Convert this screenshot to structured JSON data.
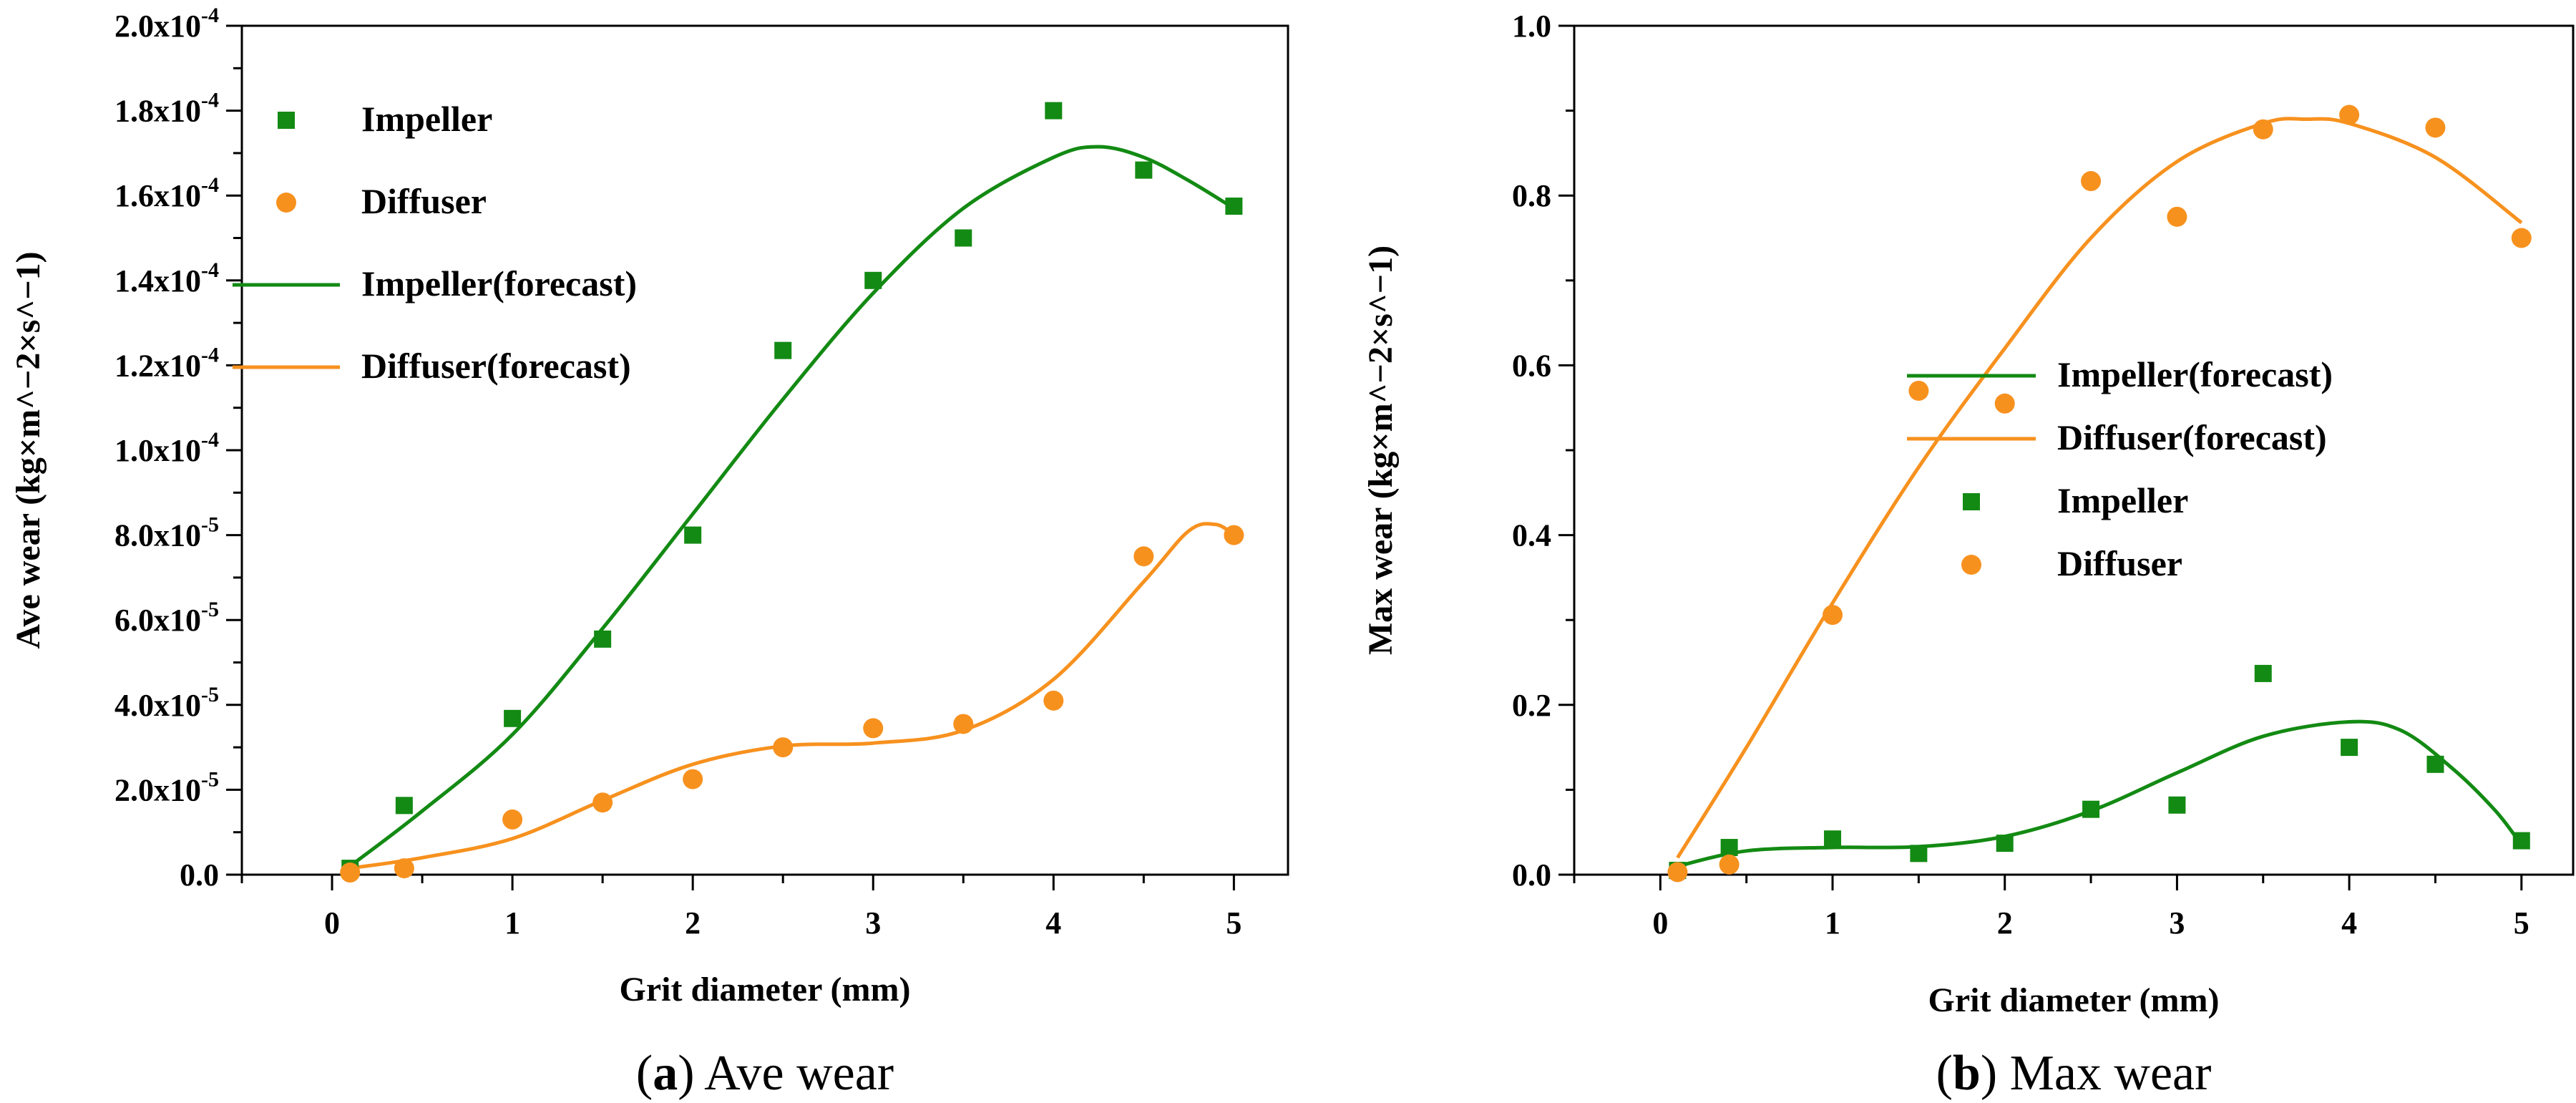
{
  "colors": {
    "impeller": "#138a13",
    "diffuser": "#f7911e"
  },
  "chart_data": [
    {
      "type": "scatter",
      "panel": "a",
      "caption_letter": "a",
      "caption_text": " Ave wear",
      "xlabel": "Grit diameter (mm)",
      "ylabel": "Ave wear (kg×m^−2×s^−1)",
      "xlim": [
        -0.5,
        5.3
      ],
      "ylim": [
        0,
        0.0002
      ],
      "x_ticks": [
        0,
        1,
        2,
        3,
        4,
        5
      ],
      "x_tick_labels": [
        "0",
        "1",
        "2",
        "3",
        "4",
        "5"
      ],
      "y_ticks": [
        0,
        2e-05,
        4e-05,
        6e-05,
        8e-05,
        0.0001,
        0.00012,
        0.00014,
        0.00016,
        0.00018,
        0.0002
      ],
      "y_tick_mantissa": [
        "0.0",
        "2.0x10",
        "4.0x10",
        "6.0x10",
        "8.0x10",
        "1.0x10",
        "1.2x10",
        "1.4x10",
        "1.6x10",
        "1.8x10",
        "2.0x10"
      ],
      "y_tick_exponent": [
        "",
        "-5",
        "-5",
        "-5",
        "-5",
        "-4",
        "-4",
        "-4",
        "-4",
        "-4",
        "-4"
      ],
      "legend": {
        "position": "top-left",
        "entries": [
          {
            "label": "Impeller",
            "kind": "square",
            "color_key": "impeller"
          },
          {
            "label": "Diffuser",
            "kind": "circle",
            "color_key": "diffuser"
          },
          {
            "label": "Impeller(forecast)",
            "kind": "line",
            "color_key": "impeller"
          },
          {
            "label": "Diffuser(forecast)",
            "kind": "line",
            "color_key": "diffuser"
          }
        ]
      },
      "series": [
        {
          "name": "Impeller",
          "kind": "points",
          "marker": "square",
          "color_key": "impeller",
          "x": [
            0.1,
            0.4,
            1,
            1.5,
            2,
            2.5,
            3,
            3.5,
            4,
            4.5,
            5
          ],
          "y": [
            1.5e-06,
            1.63e-05,
            3.68e-05,
            5.55e-05,
            8e-05,
            0.0001235,
            0.00014,
            0.00015,
            0.00018,
            0.000166,
            0.0001575
          ]
        },
        {
          "name": "Diffuser",
          "kind": "points",
          "marker": "circle",
          "color_key": "diffuser",
          "x": [
            0.1,
            0.4,
            1,
            1.5,
            2,
            2.5,
            3,
            3.5,
            4,
            4.5,
            5
          ],
          "y": [
            5e-07,
            1.5e-06,
            1.3e-05,
            1.7e-05,
            2.25e-05,
            3e-05,
            3.45e-05,
            3.55e-05,
            4.1e-05,
            7.5e-05,
            8e-05
          ]
        },
        {
          "name": "Impeller(forecast)",
          "kind": "line",
          "color_key": "impeller",
          "x": [
            0.1,
            0.5,
            1,
            1.5,
            2,
            2.5,
            3,
            3.5,
            4,
            4.25,
            4.5,
            4.75,
            5
          ],
          "y": [
            2e-06,
            1.5e-05,
            3.3e-05,
            5.8e-05,
            8.5e-05,
            0.000112,
            0.000137,
            0.000157,
            0.000169,
            0.0001715,
            0.000169,
            0.0001635,
            0.000157
          ]
        },
        {
          "name": "Diffuser(forecast)",
          "kind": "line",
          "color_key": "diffuser",
          "x": [
            0.1,
            0.5,
            1,
            1.5,
            2,
            2.5,
            3,
            3.5,
            4,
            4.5,
            4.75,
            4.9,
            5
          ],
          "y": [
            1.5e-06,
            4e-06,
            8.5e-06,
            1.75e-05,
            2.6e-05,
            3.03e-05,
            3.1e-05,
            3.4e-05,
            4.6e-05,
            6.9e-05,
            8.1e-05,
            8.25e-05,
            8e-05
          ]
        }
      ]
    },
    {
      "type": "scatter",
      "panel": "b",
      "caption_letter": "b",
      "caption_text": " Max wear",
      "xlabel": "Grit diameter (mm)",
      "ylabel": "Max wear (kg×m^−2×s^−1)",
      "xlim": [
        -0.5,
        5.3
      ],
      "ylim": [
        0,
        1.0
      ],
      "x_ticks": [
        0,
        1,
        2,
        3,
        4,
        5
      ],
      "x_tick_labels": [
        "0",
        "1",
        "2",
        "3",
        "4",
        "5"
      ],
      "y_ticks": [
        0,
        0.2,
        0.4,
        0.6,
        0.8,
        1.0
      ],
      "y_tick_mantissa": [
        "0.0",
        "0.2",
        "0.4",
        "0.6",
        "0.8",
        "1.0"
      ],
      "y_tick_exponent": [
        "",
        "",
        "",
        "",
        "",
        ""
      ],
      "legend": {
        "position": "center-right",
        "entries": [
          {
            "label": "Impeller(forecast)",
            "kind": "line",
            "color_key": "impeller"
          },
          {
            "label": "Diffuser(forecast)",
            "kind": "line",
            "color_key": "diffuser"
          },
          {
            "label": "Impeller",
            "kind": "square",
            "color_key": "impeller"
          },
          {
            "label": "Diffuser",
            "kind": "circle",
            "color_key": "diffuser"
          }
        ]
      },
      "series": [
        {
          "name": "Impeller",
          "kind": "points",
          "marker": "square",
          "color_key": "impeller",
          "x": [
            0.1,
            0.4,
            1,
            1.5,
            2,
            2.5,
            3,
            3.5,
            4,
            4.5,
            5
          ],
          "y": [
            0.005,
            0.032,
            0.042,
            0.025,
            0.037,
            0.077,
            0.082,
            0.237,
            0.15,
            0.13,
            0.04
          ]
        },
        {
          "name": "Diffuser",
          "kind": "points",
          "marker": "circle",
          "color_key": "diffuser",
          "x": [
            0.1,
            0.4,
            1,
            1.5,
            2,
            2.5,
            3,
            3.5,
            4,
            4.5,
            5
          ],
          "y": [
            0.003,
            0.012,
            0.306,
            0.57,
            0.555,
            0.817,
            0.775,
            0.878,
            0.895,
            0.88,
            0.75
          ]
        },
        {
          "name": "Impeller(forecast)",
          "kind": "line",
          "color_key": "impeller",
          "x": [
            0.1,
            0.5,
            1,
            1.5,
            2,
            2.5,
            3,
            3.5,
            4,
            4.3,
            4.6,
            4.85,
            5
          ],
          "y": [
            0.01,
            0.028,
            0.032,
            0.033,
            0.045,
            0.075,
            0.12,
            0.163,
            0.18,
            0.17,
            0.125,
            0.075,
            0.035
          ]
        },
        {
          "name": "Diffuser(forecast)",
          "kind": "line",
          "color_key": "diffuser",
          "x": [
            0.1,
            0.5,
            1,
            1.5,
            2,
            2.5,
            3,
            3.5,
            3.75,
            4,
            4.5,
            5
          ],
          "y": [
            0.02,
            0.15,
            0.32,
            0.48,
            0.62,
            0.75,
            0.84,
            0.885,
            0.89,
            0.885,
            0.845,
            0.768
          ]
        }
      ]
    }
  ]
}
